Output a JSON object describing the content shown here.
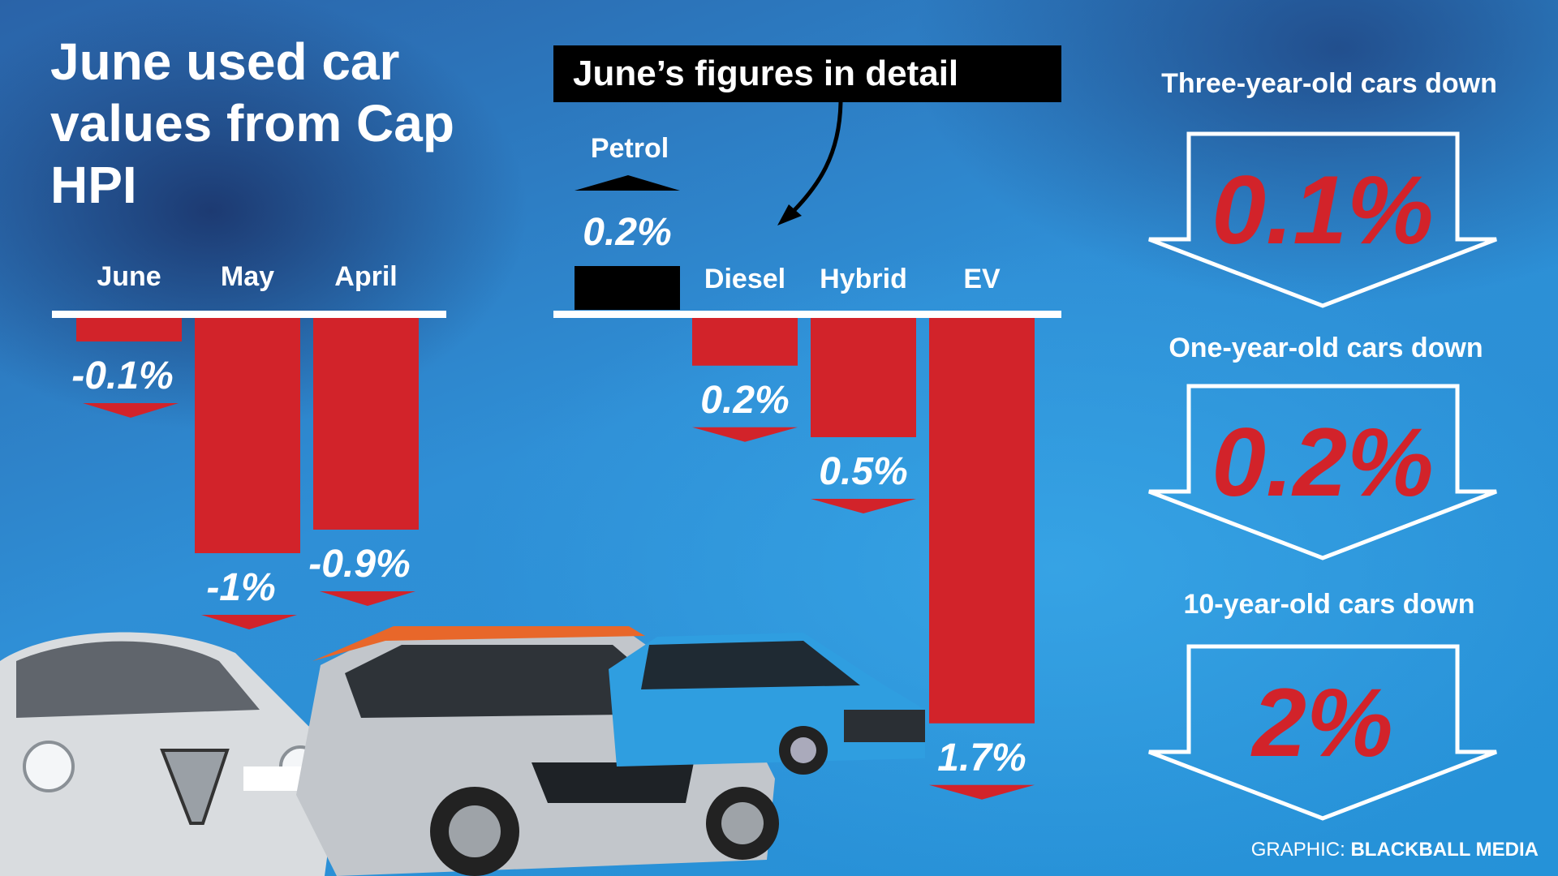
{
  "title": "June used car values from Cap HPI",
  "detail_heading": "June’s figures in detail",
  "colors": {
    "bar": "#d2232a",
    "text": "#ffffff",
    "background": "#2e8fd6",
    "box": "#000000",
    "big_number": "#d2232a"
  },
  "chart_data": [
    {
      "type": "bar",
      "title": "",
      "categories": [
        "June",
        "May",
        "April"
      ],
      "values": [
        -0.1,
        -1,
        -0.9
      ],
      "value_labels": [
        "-0.1%",
        "-1%",
        "-0.9%"
      ],
      "ylim": [
        -1,
        0
      ],
      "grid": false
    },
    {
      "type": "bar",
      "title": "June’s figures in detail",
      "categories": [
        "Petrol",
        "Diesel",
        "Hybrid",
        "EV"
      ],
      "values": [
        0.2,
        -0.2,
        -0.5,
        -1.7
      ],
      "value_labels": [
        "0.2%",
        "0.2%",
        "0.5%",
        "1.7%"
      ],
      "direction": [
        "up",
        "down",
        "down",
        "down"
      ],
      "ylim": [
        -1.7,
        0.2
      ],
      "grid": false
    }
  ],
  "age_groups": [
    {
      "label": "Three-year-old cars down",
      "value": "0.1%"
    },
    {
      "label": "One-year-old cars down",
      "value": "0.2%"
    },
    {
      "label": "10-year-old cars down",
      "value": "2%"
    }
  ],
  "credit": {
    "prefix": "GRAPHIC:",
    "name": "BLACKBALL MEDIA"
  }
}
